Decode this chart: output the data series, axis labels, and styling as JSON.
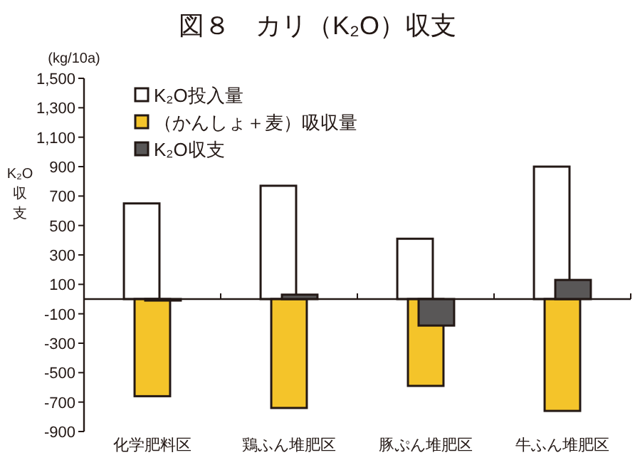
{
  "chart_data": {
    "type": "bar",
    "title": "図８　カリ（K₂O）収支",
    "ylabel": "K₂O収支",
    "annotations": [
      "(kg/10a)"
    ],
    "categories": [
      "化学肥料区",
      "鶏ふん堆肥区",
      "豚ぷん堆肥区",
      "牛ふん堆肥区"
    ],
    "series": [
      {
        "name": "K₂O投入量",
        "color": "#ffffff",
        "values": [
          650,
          770,
          410,
          900
        ]
      },
      {
        "name": "（かんしょ＋麦）吸収量",
        "color": "#f4c42a",
        "values": [
          -660,
          -740,
          -590,
          -760
        ]
      },
      {
        "name": "K₂O収支",
        "color": "#595757",
        "values": [
          -10,
          30,
          -180,
          130
        ]
      }
    ],
    "ylim": [
      -900,
      1500
    ],
    "yticks": [
      -900,
      -700,
      -500,
      -300,
      -100,
      100,
      300,
      500,
      700,
      900,
      {
        "value": 1100,
        "label": "1,100"
      },
      {
        "value": 1300,
        "label": "1,300"
      },
      {
        "value": 1500,
        "label": "1,500"
      }
    ],
    "legend": "top left",
    "grid": false
  }
}
